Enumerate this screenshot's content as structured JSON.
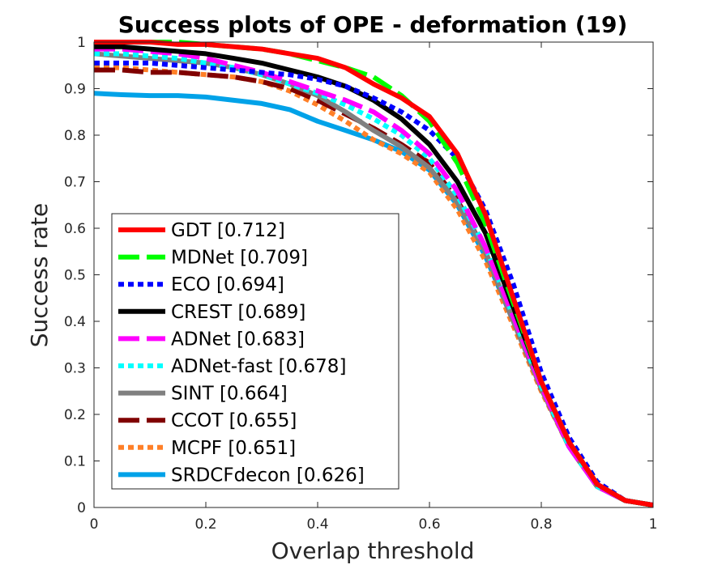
{
  "chart_data": {
    "type": "line",
    "title": "Success plots of OPE - deformation (19)",
    "xlabel": "Overlap threshold",
    "ylabel": "Success rate",
    "xlim": [
      0,
      1
    ],
    "ylim": [
      0,
      1
    ],
    "grid": false,
    "legend_position": "bottom-left",
    "x_ticks": [
      "0",
      "0.2",
      "0.4",
      "0.6",
      "0.8",
      "1"
    ],
    "y_ticks": [
      "0",
      "0.1",
      "0.2",
      "0.3",
      "0.4",
      "0.5",
      "0.6",
      "0.7",
      "0.8",
      "0.9",
      "1"
    ],
    "x": [
      0,
      0.05,
      0.1,
      0.15,
      0.2,
      0.25,
      0.3,
      0.35,
      0.4,
      0.45,
      0.5,
      0.55,
      0.6,
      0.65,
      0.7,
      0.75,
      0.8,
      0.85,
      0.9,
      0.95,
      1.0
    ],
    "series": [
      {
        "name": "GDT",
        "score": "[0.712]",
        "label": "GDT [0.712]",
        "color": "#ff0000",
        "style": "solid",
        "values": [
          1.0,
          1.0,
          1.0,
          0.995,
          0.995,
          0.99,
          0.985,
          0.975,
          0.965,
          0.945,
          0.91,
          0.88,
          0.84,
          0.76,
          0.63,
          0.45,
          0.27,
          0.14,
          0.05,
          0.015,
          0.005
        ]
      },
      {
        "name": "MDNet",
        "score": "[0.709]",
        "label": "MDNet [0.709]",
        "color": "#00ff00",
        "style": "dashed",
        "values": [
          1.0,
          1.0,
          1.0,
          1.0,
          0.995,
          0.99,
          0.985,
          0.975,
          0.96,
          0.945,
          0.925,
          0.885,
          0.83,
          0.74,
          0.61,
          0.44,
          0.27,
          0.14,
          0.05,
          0.015,
          0.005
        ]
      },
      {
        "name": "ECO",
        "score": "[0.694]",
        "label": "ECO [0.694]",
        "color": "#0000ff",
        "style": "dotted",
        "values": [
          0.955,
          0.955,
          0.955,
          0.95,
          0.945,
          0.94,
          0.935,
          0.93,
          0.92,
          0.905,
          0.88,
          0.85,
          0.81,
          0.75,
          0.64,
          0.48,
          0.29,
          0.15,
          0.055,
          0.015,
          0.005
        ]
      },
      {
        "name": "CREST",
        "score": "[0.689]",
        "label": "CREST [0.689]",
        "color": "#000000",
        "style": "solid",
        "values": [
          0.99,
          0.99,
          0.985,
          0.98,
          0.975,
          0.965,
          0.955,
          0.94,
          0.925,
          0.905,
          0.875,
          0.835,
          0.78,
          0.7,
          0.59,
          0.43,
          0.27,
          0.14,
          0.05,
          0.015,
          0.005
        ]
      },
      {
        "name": "ADNet",
        "score": "[0.683]",
        "label": "ADNet [0.683]",
        "color": "#ff00ff",
        "style": "dashed",
        "values": [
          0.985,
          0.985,
          0.98,
          0.975,
          0.965,
          0.95,
          0.935,
          0.915,
          0.895,
          0.875,
          0.85,
          0.81,
          0.76,
          0.68,
          0.56,
          0.41,
          0.26,
          0.13,
          0.045,
          0.015,
          0.005
        ]
      },
      {
        "name": "ADNet-fast",
        "score": "[0.678]",
        "label": "ADNet-fast [0.678]",
        "color": "#00ffff",
        "style": "dotted",
        "values": [
          0.975,
          0.975,
          0.97,
          0.965,
          0.955,
          0.945,
          0.93,
          0.91,
          0.89,
          0.865,
          0.835,
          0.8,
          0.75,
          0.67,
          0.56,
          0.41,
          0.26,
          0.13,
          0.045,
          0.015,
          0.005
        ]
      },
      {
        "name": "SINT",
        "score": "[0.664]",
        "label": "SINT [0.664]",
        "color": "#808080",
        "style": "solid",
        "values": [
          0.975,
          0.97,
          0.965,
          0.96,
          0.955,
          0.945,
          0.93,
          0.91,
          0.885,
          0.85,
          0.81,
          0.775,
          0.73,
          0.655,
          0.55,
          0.4,
          0.255,
          0.13,
          0.045,
          0.015,
          0.005
        ]
      },
      {
        "name": "CCOT",
        "score": "[0.655]",
        "label": "CCOT [0.655]",
        "color": "#800000",
        "style": "dashed",
        "values": [
          0.94,
          0.94,
          0.935,
          0.935,
          0.93,
          0.925,
          0.915,
          0.9,
          0.875,
          0.845,
          0.815,
          0.78,
          0.74,
          0.66,
          0.55,
          0.4,
          0.255,
          0.13,
          0.045,
          0.015,
          0.005
        ]
      },
      {
        "name": "MCPF",
        "score": "[0.651]",
        "label": "MCPF [0.651]",
        "color": "#ff7f27",
        "style": "dotted",
        "values": [
          0.945,
          0.945,
          0.94,
          0.935,
          0.93,
          0.925,
          0.915,
          0.895,
          0.865,
          0.83,
          0.79,
          0.76,
          0.72,
          0.64,
          0.53,
          0.39,
          0.25,
          0.13,
          0.045,
          0.015,
          0.005
        ]
      },
      {
        "name": "SRDCFdecon",
        "score": "[0.626]",
        "label": "SRDCFdecon [0.626]",
        "color": "#00a2e8",
        "style": "solid",
        "values": [
          0.89,
          0.887,
          0.885,
          0.885,
          0.882,
          0.875,
          0.868,
          0.855,
          0.83,
          0.81,
          0.79,
          0.765,
          0.725,
          0.65,
          0.54,
          0.4,
          0.26,
          0.13,
          0.045,
          0.015,
          0.005
        ]
      }
    ]
  }
}
